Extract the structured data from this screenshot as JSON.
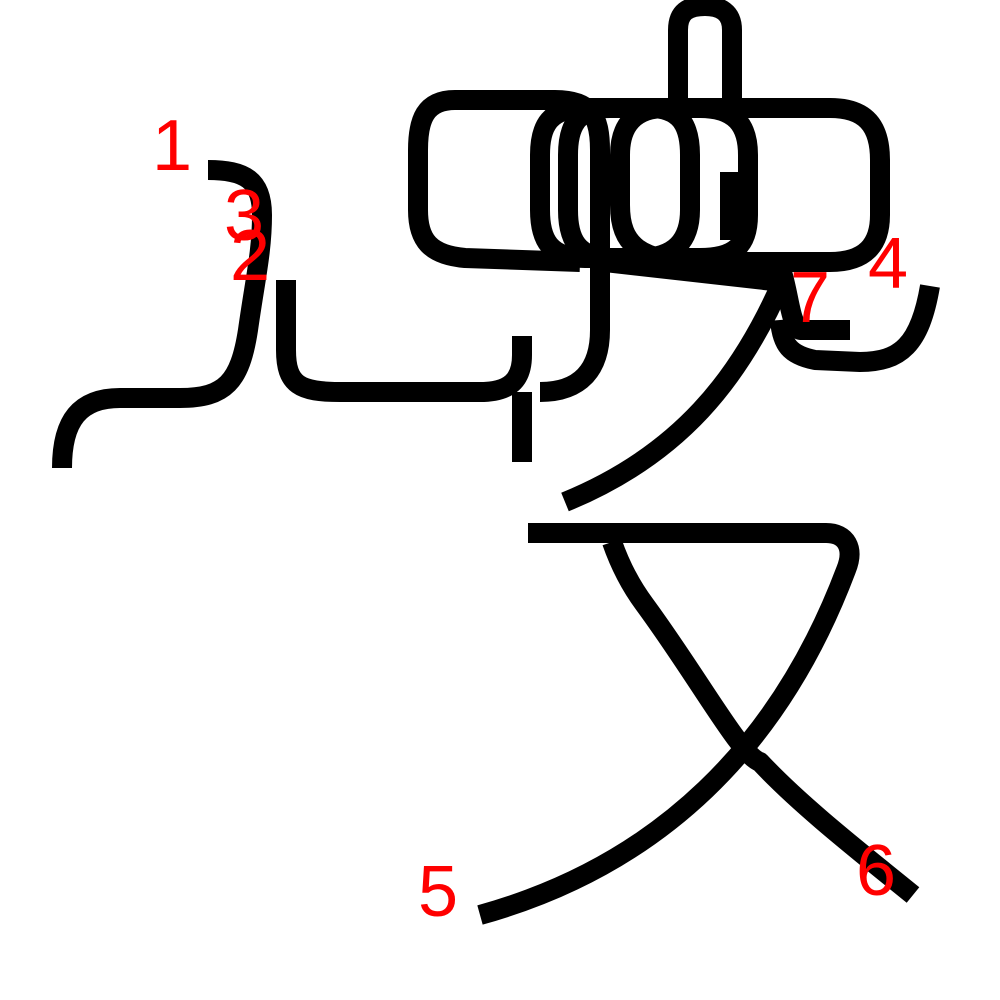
{
  "figure": {
    "stroke_color": "#000000",
    "label_color": "#ff0000",
    "background_color": "#ffffff",
    "labels": [
      {
        "id": "label-1",
        "text": "1"
      },
      {
        "id": "label-2",
        "text": "2"
      },
      {
        "id": "label-3",
        "text": "3"
      },
      {
        "id": "label-4",
        "text": "4"
      },
      {
        "id": "label-5",
        "text": "5"
      },
      {
        "id": "label-6",
        "text": "6"
      },
      {
        "id": "label-7",
        "text": "7"
      }
    ]
  }
}
